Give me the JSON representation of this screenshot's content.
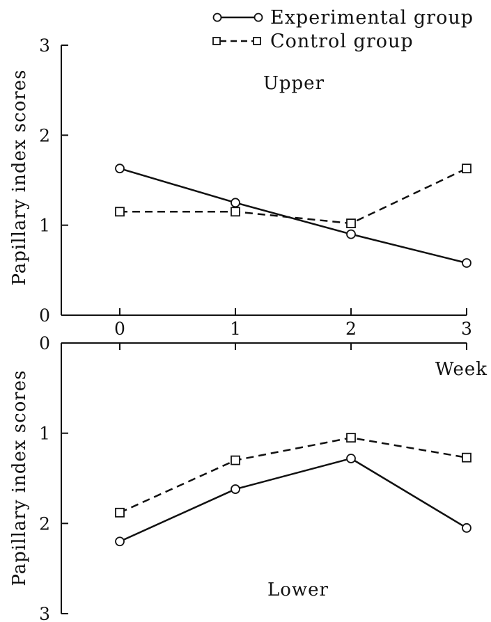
{
  "chart_data": [
    {
      "type": "line",
      "title": "Upper",
      "xlabel": "",
      "ylabel": "Papillary index scores",
      "x": [
        0,
        1,
        2,
        3
      ],
      "x_tick_labels": [
        "0",
        "1",
        "2",
        "3"
      ],
      "y_tick_labels": [
        "0",
        "1",
        "2",
        "3"
      ],
      "ylim": [
        0,
        3
      ],
      "y_inverted": false,
      "series": [
        {
          "name": "Experimental group",
          "style": "solid",
          "marker": "circle",
          "values": [
            1.63,
            1.25,
            0.9,
            0.58
          ]
        },
        {
          "name": "Control group",
          "style": "dashed",
          "marker": "square",
          "values": [
            1.15,
            1.15,
            1.02,
            1.63
          ]
        }
      ],
      "legend": {
        "position": "top-right"
      },
      "grid": false
    },
    {
      "type": "line",
      "title": "Lower",
      "xlabel": "Week",
      "ylabel": "Papillary index scores",
      "x": [
        0,
        1,
        2,
        3
      ],
      "y_tick_labels": [
        "0",
        "1",
        "2",
        "3"
      ],
      "ylim": [
        3,
        0
      ],
      "y_inverted": true,
      "series": [
        {
          "name": "Experimental group",
          "style": "solid",
          "marker": "circle",
          "values": [
            2.2,
            1.62,
            1.28,
            2.05
          ]
        },
        {
          "name": "Control group",
          "style": "dashed",
          "marker": "square",
          "values": [
            1.88,
            1.3,
            1.05,
            1.27
          ]
        }
      ],
      "grid": false
    }
  ],
  "legend": {
    "items": [
      {
        "label": "Experimental group",
        "style": "solid",
        "marker": "circle"
      },
      {
        "label": "Control group",
        "style": "dashed",
        "marker": "square"
      }
    ]
  },
  "colors": {
    "ink": "#111111",
    "background": "#ffffff"
  }
}
